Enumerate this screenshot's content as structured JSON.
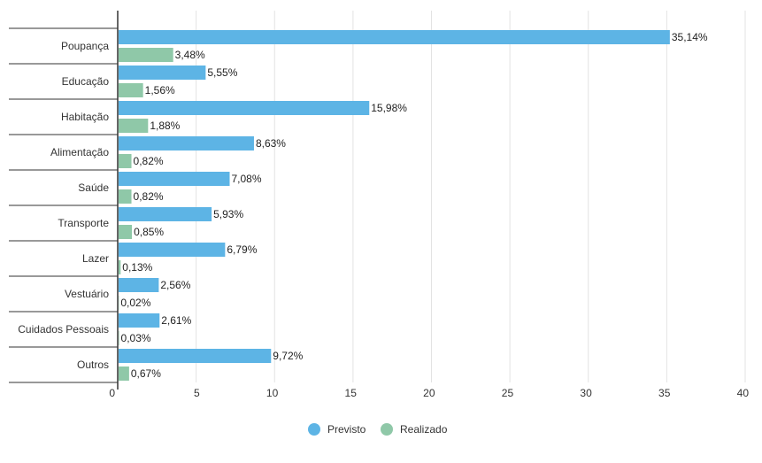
{
  "chart_data": {
    "type": "bar",
    "orientation": "horizontal",
    "categories": [
      "Poupança",
      "Educação",
      "Habitação",
      "Alimentação",
      "Saúde",
      "Transporte",
      "Lazer",
      "Vestuário",
      "Cuidados Pessoais",
      "Outros"
    ],
    "series": [
      {
        "name": "Previsto",
        "color": "#5DB4E5",
        "values": [
          35.14,
          5.55,
          15.98,
          8.63,
          7.08,
          5.93,
          6.79,
          2.56,
          2.61,
          9.72
        ],
        "labels": [
          "35,14%",
          "5,55%",
          "15,98%",
          "8,63%",
          "7,08%",
          "5,93%",
          "6,79%",
          "2,56%",
          "2,61%",
          "9,72%"
        ]
      },
      {
        "name": "Realizado",
        "color": "#8FC8A8",
        "values": [
          3.48,
          1.56,
          1.88,
          0.82,
          0.82,
          0.85,
          0.13,
          0.02,
          0.03,
          0.67
        ],
        "labels": [
          "3,48%",
          "1,56%",
          "1,88%",
          "0,82%",
          "0,82%",
          "0,85%",
          "0,13%",
          "0,02%",
          "0,03%",
          "0,67%"
        ]
      }
    ],
    "xlim": [
      0,
      40
    ],
    "xticks": [
      0,
      5,
      10,
      15,
      20,
      25,
      30,
      35,
      40
    ],
    "grid": true,
    "legend": "bottom-center",
    "title": "",
    "xlabel": "",
    "ylabel": ""
  }
}
